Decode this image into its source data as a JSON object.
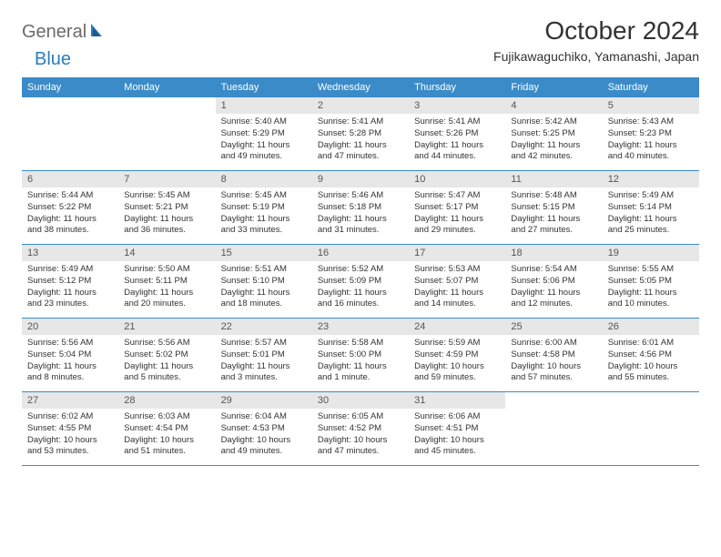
{
  "logo": {
    "part1": "General",
    "part2": "Blue"
  },
  "title": "October 2024",
  "location": "Fujikawaguchiko, Yamanashi, Japan",
  "header_bg": "#3b8bc8",
  "daynum_bg": "#e7e7e7",
  "day_headers": [
    "Sunday",
    "Monday",
    "Tuesday",
    "Wednesday",
    "Thursday",
    "Friday",
    "Saturday"
  ],
  "weeks": [
    [
      null,
      null,
      {
        "n": "1",
        "sr": "Sunrise: 5:40 AM",
        "ss": "Sunset: 5:29 PM",
        "dl": "Daylight: 11 hours and 49 minutes."
      },
      {
        "n": "2",
        "sr": "Sunrise: 5:41 AM",
        "ss": "Sunset: 5:28 PM",
        "dl": "Daylight: 11 hours and 47 minutes."
      },
      {
        "n": "3",
        "sr": "Sunrise: 5:41 AM",
        "ss": "Sunset: 5:26 PM",
        "dl": "Daylight: 11 hours and 44 minutes."
      },
      {
        "n": "4",
        "sr": "Sunrise: 5:42 AM",
        "ss": "Sunset: 5:25 PM",
        "dl": "Daylight: 11 hours and 42 minutes."
      },
      {
        "n": "5",
        "sr": "Sunrise: 5:43 AM",
        "ss": "Sunset: 5:23 PM",
        "dl": "Daylight: 11 hours and 40 minutes."
      }
    ],
    [
      {
        "n": "6",
        "sr": "Sunrise: 5:44 AM",
        "ss": "Sunset: 5:22 PM",
        "dl": "Daylight: 11 hours and 38 minutes."
      },
      {
        "n": "7",
        "sr": "Sunrise: 5:45 AM",
        "ss": "Sunset: 5:21 PM",
        "dl": "Daylight: 11 hours and 36 minutes."
      },
      {
        "n": "8",
        "sr": "Sunrise: 5:45 AM",
        "ss": "Sunset: 5:19 PM",
        "dl": "Daylight: 11 hours and 33 minutes."
      },
      {
        "n": "9",
        "sr": "Sunrise: 5:46 AM",
        "ss": "Sunset: 5:18 PM",
        "dl": "Daylight: 11 hours and 31 minutes."
      },
      {
        "n": "10",
        "sr": "Sunrise: 5:47 AM",
        "ss": "Sunset: 5:17 PM",
        "dl": "Daylight: 11 hours and 29 minutes."
      },
      {
        "n": "11",
        "sr": "Sunrise: 5:48 AM",
        "ss": "Sunset: 5:15 PM",
        "dl": "Daylight: 11 hours and 27 minutes."
      },
      {
        "n": "12",
        "sr": "Sunrise: 5:49 AM",
        "ss": "Sunset: 5:14 PM",
        "dl": "Daylight: 11 hours and 25 minutes."
      }
    ],
    [
      {
        "n": "13",
        "sr": "Sunrise: 5:49 AM",
        "ss": "Sunset: 5:12 PM",
        "dl": "Daylight: 11 hours and 23 minutes."
      },
      {
        "n": "14",
        "sr": "Sunrise: 5:50 AM",
        "ss": "Sunset: 5:11 PM",
        "dl": "Daylight: 11 hours and 20 minutes."
      },
      {
        "n": "15",
        "sr": "Sunrise: 5:51 AM",
        "ss": "Sunset: 5:10 PM",
        "dl": "Daylight: 11 hours and 18 minutes."
      },
      {
        "n": "16",
        "sr": "Sunrise: 5:52 AM",
        "ss": "Sunset: 5:09 PM",
        "dl": "Daylight: 11 hours and 16 minutes."
      },
      {
        "n": "17",
        "sr": "Sunrise: 5:53 AM",
        "ss": "Sunset: 5:07 PM",
        "dl": "Daylight: 11 hours and 14 minutes."
      },
      {
        "n": "18",
        "sr": "Sunrise: 5:54 AM",
        "ss": "Sunset: 5:06 PM",
        "dl": "Daylight: 11 hours and 12 minutes."
      },
      {
        "n": "19",
        "sr": "Sunrise: 5:55 AM",
        "ss": "Sunset: 5:05 PM",
        "dl": "Daylight: 11 hours and 10 minutes."
      }
    ],
    [
      {
        "n": "20",
        "sr": "Sunrise: 5:56 AM",
        "ss": "Sunset: 5:04 PM",
        "dl": "Daylight: 11 hours and 8 minutes."
      },
      {
        "n": "21",
        "sr": "Sunrise: 5:56 AM",
        "ss": "Sunset: 5:02 PM",
        "dl": "Daylight: 11 hours and 5 minutes."
      },
      {
        "n": "22",
        "sr": "Sunrise: 5:57 AM",
        "ss": "Sunset: 5:01 PM",
        "dl": "Daylight: 11 hours and 3 minutes."
      },
      {
        "n": "23",
        "sr": "Sunrise: 5:58 AM",
        "ss": "Sunset: 5:00 PM",
        "dl": "Daylight: 11 hours and 1 minute."
      },
      {
        "n": "24",
        "sr": "Sunrise: 5:59 AM",
        "ss": "Sunset: 4:59 PM",
        "dl": "Daylight: 10 hours and 59 minutes."
      },
      {
        "n": "25",
        "sr": "Sunrise: 6:00 AM",
        "ss": "Sunset: 4:58 PM",
        "dl": "Daylight: 10 hours and 57 minutes."
      },
      {
        "n": "26",
        "sr": "Sunrise: 6:01 AM",
        "ss": "Sunset: 4:56 PM",
        "dl": "Daylight: 10 hours and 55 minutes."
      }
    ],
    [
      {
        "n": "27",
        "sr": "Sunrise: 6:02 AM",
        "ss": "Sunset: 4:55 PM",
        "dl": "Daylight: 10 hours and 53 minutes."
      },
      {
        "n": "28",
        "sr": "Sunrise: 6:03 AM",
        "ss": "Sunset: 4:54 PM",
        "dl": "Daylight: 10 hours and 51 minutes."
      },
      {
        "n": "29",
        "sr": "Sunrise: 6:04 AM",
        "ss": "Sunset: 4:53 PM",
        "dl": "Daylight: 10 hours and 49 minutes."
      },
      {
        "n": "30",
        "sr": "Sunrise: 6:05 AM",
        "ss": "Sunset: 4:52 PM",
        "dl": "Daylight: 10 hours and 47 minutes."
      },
      {
        "n": "31",
        "sr": "Sunrise: 6:06 AM",
        "ss": "Sunset: 4:51 PM",
        "dl": "Daylight: 10 hours and 45 minutes."
      },
      null,
      null
    ]
  ]
}
